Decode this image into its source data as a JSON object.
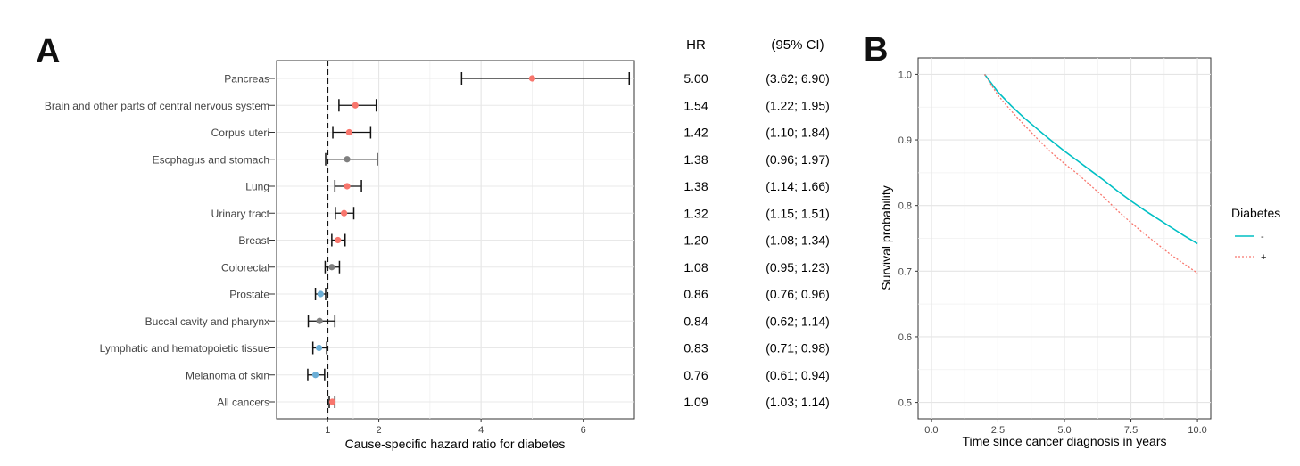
{
  "panels": {
    "a": {
      "letter": "A"
    },
    "b": {
      "letter": "B"
    }
  },
  "colors": {
    "increased": "#F8766D",
    "not_significant": "#7F7F7F",
    "decreased": "#6BAED6",
    "diabetes_no": "#00BFC4",
    "diabetes_yes": "#F8766D"
  },
  "chart_data": [
    {
      "type": "forest",
      "xlabel": "Cause-specific hazard ratio for diabetes",
      "xticks": [
        1,
        2,
        4,
        6
      ],
      "xlim": [
        0.0,
        7.0
      ],
      "reference_line": 1,
      "table_headers": {
        "hr": "HR",
        "ci": "(95% CI)"
      },
      "rows": [
        {
          "label": "Pancreas",
          "hr": 5.0,
          "lo": 3.62,
          "hi": 6.9,
          "hr_text": "5.00",
          "ci_text": "(3.62; 6.90)",
          "group": "increased"
        },
        {
          "label": "Brain and other parts of central nervous system",
          "hr": 1.54,
          "lo": 1.22,
          "hi": 1.95,
          "hr_text": "1.54",
          "ci_text": "(1.22; 1.95)",
          "group": "increased"
        },
        {
          "label": "Corpus uteri",
          "hr": 1.42,
          "lo": 1.1,
          "hi": 1.84,
          "hr_text": "1.42",
          "ci_text": "(1.10; 1.84)",
          "group": "increased"
        },
        {
          "label": "Escphagus and stomach",
          "hr": 1.38,
          "lo": 0.96,
          "hi": 1.97,
          "hr_text": "1.38",
          "ci_text": "(0.96; 1.97)",
          "group": "not_significant"
        },
        {
          "label": "Lung",
          "hr": 1.38,
          "lo": 1.14,
          "hi": 1.66,
          "hr_text": "1.38",
          "ci_text": "(1.14; 1.66)",
          "group": "increased"
        },
        {
          "label": "Urinary tract",
          "hr": 1.32,
          "lo": 1.15,
          "hi": 1.51,
          "hr_text": "1.32",
          "ci_text": "(1.15; 1.51)",
          "group": "increased"
        },
        {
          "label": "Breast",
          "hr": 1.2,
          "lo": 1.08,
          "hi": 1.34,
          "hr_text": "1.20",
          "ci_text": "(1.08; 1.34)",
          "group": "increased"
        },
        {
          "label": "Colorectal",
          "hr": 1.08,
          "lo": 0.95,
          "hi": 1.23,
          "hr_text": "1.08",
          "ci_text": "(0.95; 1.23)",
          "group": "not_significant"
        },
        {
          "label": "Prostate",
          "hr": 0.86,
          "lo": 0.76,
          "hi": 0.96,
          "hr_text": "0.86",
          "ci_text": "(0.76; 0.96)",
          "group": "decreased"
        },
        {
          "label": "Buccal cavity and pharynx",
          "hr": 0.84,
          "lo": 0.62,
          "hi": 1.14,
          "hr_text": "0.84",
          "ci_text": "(0.62; 1.14)",
          "group": "not_significant"
        },
        {
          "label": "Lymphatic and hematopoietic tissue",
          "hr": 0.83,
          "lo": 0.71,
          "hi": 0.98,
          "hr_text": "0.83",
          "ci_text": "(0.71; 0.98)",
          "group": "decreased"
        },
        {
          "label": "Melanoma of skin",
          "hr": 0.76,
          "lo": 0.61,
          "hi": 0.94,
          "hr_text": "0.76",
          "ci_text": "(0.61; 0.94)",
          "group": "decreased"
        },
        {
          "label": "All cancers",
          "hr": 1.09,
          "lo": 1.03,
          "hi": 1.14,
          "hr_text": "1.09",
          "ci_text": "(1.03; 1.14)",
          "group": "increased"
        }
      ]
    },
    {
      "type": "line",
      "xlabel": "Time since cancer diagnosis in years",
      "ylabel": "Survival probability",
      "xlim": [
        -0.5,
        10.5
      ],
      "ylim": [
        0.475,
        1.025
      ],
      "xticks": [
        0,
        2.5,
        5,
        7.5,
        10
      ],
      "xtick_labels": [
        "0.0",
        "2.5",
        "5.0",
        "7.5",
        "10.0"
      ],
      "yticks": [
        0.5,
        0.6,
        0.7,
        0.8,
        0.9,
        1.0
      ],
      "ytick_labels": [
        "0.5",
        "0.6",
        "0.7",
        "0.8",
        "0.9",
        "1.0"
      ],
      "grid": true,
      "legend": {
        "title": "Diabetes",
        "position": "right"
      },
      "series": [
        {
          "name": "-",
          "color_key": "diabetes_no",
          "style": "solid",
          "x": [
            2.0,
            2.5,
            3.0,
            3.5,
            4.0,
            4.5,
            5.0,
            5.5,
            6.0,
            6.5,
            7.0,
            7.5,
            8.0,
            8.5,
            9.0,
            9.5,
            10.0
          ],
          "y": [
            1.0,
            0.973,
            0.952,
            0.933,
            0.916,
            0.899,
            0.883,
            0.868,
            0.853,
            0.838,
            0.822,
            0.807,
            0.793,
            0.78,
            0.767,
            0.754,
            0.742
          ]
        },
        {
          "name": "+",
          "color_key": "diabetes_yes",
          "style": "dotted",
          "x": [
            2.0,
            2.5,
            3.0,
            3.5,
            4.0,
            4.5,
            5.0,
            5.5,
            6.0,
            6.5,
            7.0,
            7.5,
            8.0,
            8.5,
            9.0,
            9.5,
            10.0
          ],
          "y": [
            1.0,
            0.968,
            0.944,
            0.922,
            0.901,
            0.881,
            0.864,
            0.848,
            0.83,
            0.812,
            0.792,
            0.774,
            0.757,
            0.741,
            0.725,
            0.711,
            0.697
          ]
        }
      ]
    }
  ]
}
